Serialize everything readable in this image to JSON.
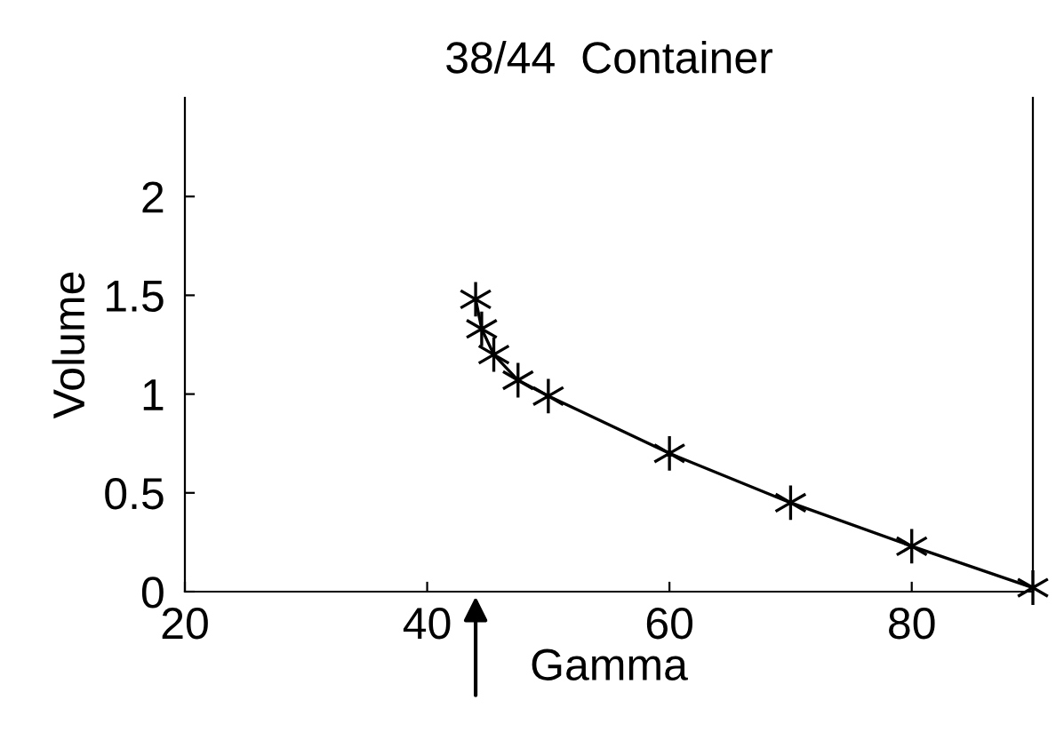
{
  "chart_data": {
    "type": "line",
    "title": "38/44  Container",
    "xlabel": "Gamma",
    "ylabel": "Volume",
    "x": [
      44,
      44.5,
      45.5,
      47.5,
      50,
      60,
      70,
      80,
      90
    ],
    "series": [
      {
        "color": "#000000",
        "values": [
          1.48,
          1.33,
          1.2,
          1.07,
          0.99,
          0.7,
          0.45,
          0.23,
          0.02
        ]
      }
    ],
    "xlim": [
      20,
      90
    ],
    "ylim": [
      0,
      2.5
    ],
    "xticks": [
      20,
      40,
      60,
      80
    ],
    "yticks": [
      0,
      0.5,
      1,
      1.5,
      2
    ],
    "marker": "cross",
    "line_style": "solid",
    "grid": false,
    "legend": false
  }
}
